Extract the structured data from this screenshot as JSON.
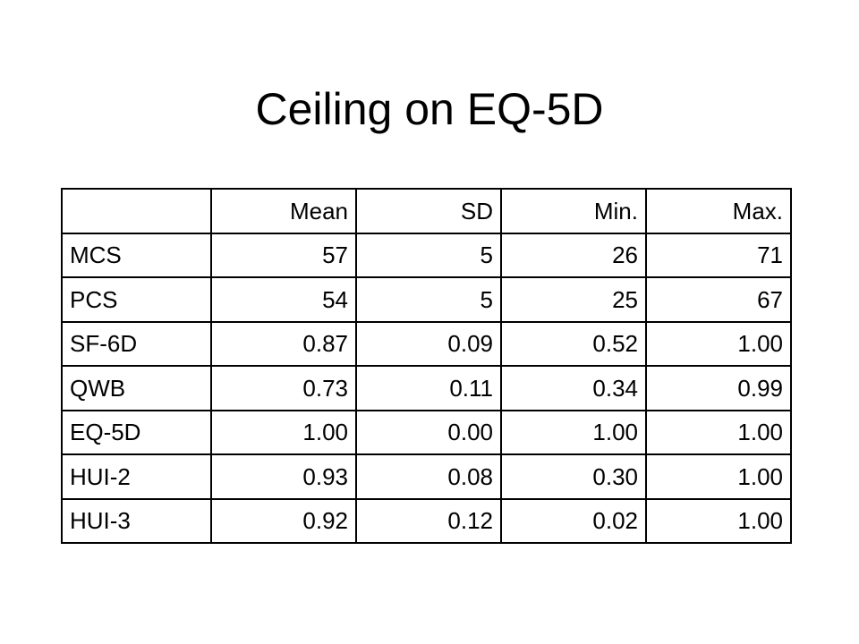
{
  "header": {
    "title": "Ceiling on EQ-5D"
  },
  "table": {
    "columns": [
      "Mean",
      "SD",
      "Min.",
      "Max."
    ],
    "rows": [
      [
        "MCS",
        "57",
        "5",
        "26",
        "71"
      ],
      [
        "PCS",
        "54",
        "5",
        "25",
        "67"
      ],
      [
        "SF-6D",
        "0.87",
        "0.09",
        "0.52",
        "1.00"
      ],
      [
        "QWB",
        "0.73",
        "0.11",
        "0.34",
        "0.99"
      ],
      [
        "EQ-5D",
        "1.00",
        "0.00",
        "1.00",
        "1.00"
      ],
      [
        "HUI-2",
        "0.93",
        "0.08",
        "0.30",
        "1.00"
      ],
      [
        "HUI-3",
        "0.92",
        "0.12",
        "0.02",
        "1.00"
      ]
    ]
  }
}
